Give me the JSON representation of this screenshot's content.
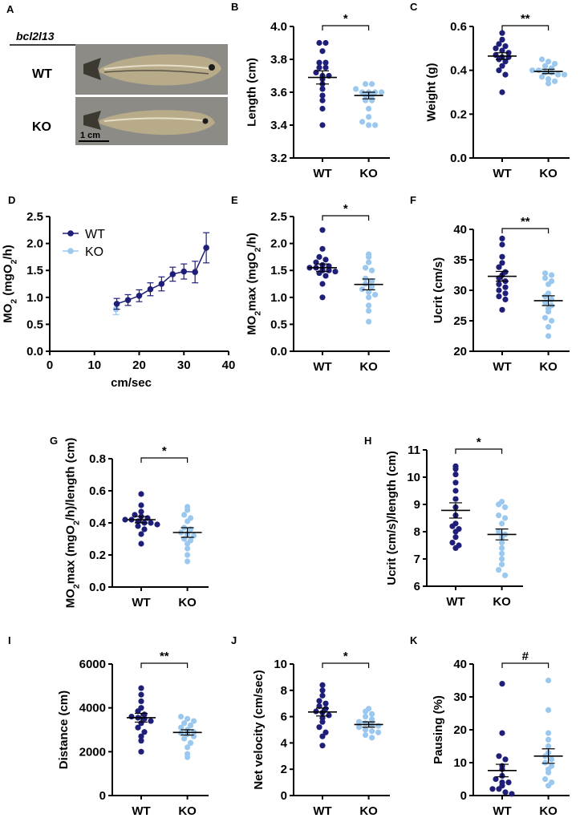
{
  "photo": {
    "panel_letter": "A",
    "gene": "bcl2l13",
    "row_labels": [
      "WT",
      "KO"
    ],
    "scale_bar": "1 cm"
  },
  "colors": {
    "wt": "#1f1f7a",
    "ko": "#9cc8ee",
    "line": "#000000",
    "text": "#000000"
  },
  "chart_data": [
    {
      "id": "B",
      "type": "scatter",
      "ylabel": "Length (cm)",
      "ylim": [
        3.2,
        4.0
      ],
      "yticks": [
        "3.2",
        "3.4",
        "3.6",
        "3.8",
        "4.0"
      ],
      "categories": [
        "WT",
        "KO"
      ],
      "significance": "*",
      "series": [
        {
          "name": "WT",
          "mean": 3.69,
          "sem": 0.04,
          "values": [
            3.9,
            3.9,
            3.85,
            3.78,
            3.78,
            3.75,
            3.75,
            3.72,
            3.7,
            3.7,
            3.68,
            3.65,
            3.62,
            3.58,
            3.55,
            3.5,
            3.4
          ]
        },
        {
          "name": "KO",
          "mean": 3.58,
          "sem": 0.02,
          "values": [
            3.65,
            3.65,
            3.62,
            3.6,
            3.6,
            3.6,
            3.6,
            3.58,
            3.58,
            3.55,
            3.55,
            3.5,
            3.45,
            3.42,
            3.4,
            3.4
          ]
        }
      ]
    },
    {
      "id": "C",
      "type": "scatter",
      "ylabel": "Weight  (g)",
      "ylim": [
        0.0,
        0.6
      ],
      "yticks": [
        "0.0",
        "0.2",
        "0.4",
        "0.6"
      ],
      "categories": [
        "WT",
        "KO"
      ],
      "significance": "**",
      "series": [
        {
          "name": "WT",
          "mean": 0.465,
          "sem": 0.015,
          "values": [
            0.57,
            0.54,
            0.52,
            0.51,
            0.5,
            0.49,
            0.48,
            0.47,
            0.46,
            0.46,
            0.45,
            0.44,
            0.42,
            0.4,
            0.38,
            0.3
          ]
        },
        {
          "name": "KO",
          "mean": 0.395,
          "sem": 0.01,
          "values": [
            0.45,
            0.44,
            0.43,
            0.42,
            0.41,
            0.4,
            0.4,
            0.39,
            0.39,
            0.38,
            0.38,
            0.37,
            0.36,
            0.35,
            0.34
          ]
        }
      ]
    },
    {
      "id": "D",
      "type": "line",
      "ylabel": "MO2 (mgO2/h)",
      "xlabel": "cm/sec",
      "xlim": [
        0,
        40
      ],
      "ylim": [
        0.0,
        2.5
      ],
      "xticks": [
        "0",
        "10",
        "20",
        "30",
        "40"
      ],
      "yticks": [
        "0.0",
        "0.5",
        "1.0",
        "1.5",
        "2.0",
        "2.5"
      ],
      "legend": "top-left",
      "series": [
        {
          "name": "WT",
          "x": [
            15,
            17.5,
            20,
            22.5,
            25,
            27.5,
            30,
            32.5,
            35
          ],
          "y": [
            0.88,
            0.95,
            1.03,
            1.15,
            1.25,
            1.43,
            1.48,
            1.47,
            1.92
          ],
          "err": [
            0.1,
            0.1,
            0.11,
            0.12,
            0.13,
            0.13,
            0.14,
            0.2,
            0.28
          ]
        },
        {
          "name": "KO",
          "x": [
            15
          ],
          "y": [
            0.78
          ],
          "err": [
            0.1
          ]
        }
      ]
    },
    {
      "id": "E",
      "type": "scatter",
      "ylabel": "MO2max (mgO2/h)",
      "ylim": [
        0.0,
        2.5
      ],
      "yticks": [
        "0.0",
        "0.5",
        "1.0",
        "1.5",
        "2.0",
        "2.5"
      ],
      "categories": [
        "WT",
        "KO"
      ],
      "significance": "*",
      "series": [
        {
          "name": "WT",
          "mean": 1.55,
          "sem": 0.07,
          "values": [
            2.25,
            1.9,
            1.75,
            1.7,
            1.65,
            1.6,
            1.58,
            1.55,
            1.55,
            1.5,
            1.5,
            1.48,
            1.45,
            1.4,
            1.25,
            1.0
          ]
        },
        {
          "name": "KO",
          "mean": 1.24,
          "sem": 0.1,
          "values": [
            1.8,
            1.75,
            1.65,
            1.55,
            1.5,
            1.35,
            1.3,
            1.25,
            1.2,
            1.15,
            1.1,
            1.05,
            1.0,
            0.85,
            0.75,
            0.55
          ]
        }
      ]
    },
    {
      "id": "F",
      "type": "scatter",
      "ylabel": "Ucrit (cm/s)",
      "ylim": [
        20,
        40
      ],
      "yticks": [
        "20",
        "25",
        "30",
        "35",
        "40"
      ],
      "categories": [
        "WT",
        "KO"
      ],
      "significance": "**",
      "series": [
        {
          "name": "WT",
          "mean": 32.3,
          "sem": 0.8,
          "values": [
            38.5,
            37.5,
            35.5,
            34.5,
            33.8,
            33,
            32.5,
            32,
            31.5,
            31,
            30.5,
            30,
            29.5,
            29,
            28.5,
            26.8
          ]
        },
        {
          "name": "KO",
          "mean": 28.3,
          "sem": 0.8,
          "values": [
            32.8,
            32.5,
            32,
            31.5,
            31,
            29.5,
            29,
            28.5,
            28,
            27.5,
            27,
            26.5,
            25.5,
            25,
            24,
            22.5
          ]
        }
      ]
    },
    {
      "id": "G",
      "type": "scatter",
      "ylabel": "MO2max (mgO2/h)/length (cm)",
      "ylim": [
        0.0,
        0.8
      ],
      "yticks": [
        "0.0",
        "0.2",
        "0.4",
        "0.6",
        "0.8"
      ],
      "categories": [
        "WT",
        "KO"
      ],
      "significance": "*",
      "series": [
        {
          "name": "WT",
          "mean": 0.42,
          "sem": 0.02,
          "values": [
            0.58,
            0.51,
            0.47,
            0.45,
            0.44,
            0.43,
            0.42,
            0.42,
            0.41,
            0.4,
            0.4,
            0.39,
            0.38,
            0.36,
            0.33,
            0.27
          ]
        },
        {
          "name": "KO",
          "mean": 0.34,
          "sem": 0.03,
          "values": [
            0.5,
            0.48,
            0.45,
            0.43,
            0.41,
            0.37,
            0.36,
            0.34,
            0.33,
            0.32,
            0.3,
            0.29,
            0.27,
            0.24,
            0.2,
            0.16
          ]
        }
      ]
    },
    {
      "id": "H",
      "type": "scatter",
      "ylabel": "Ucrit (cm/s)/length (cm)",
      "ylim": [
        6,
        11
      ],
      "yticks": [
        "6",
        "7",
        "8",
        "9",
        "10",
        "11"
      ],
      "categories": [
        "WT",
        "KO"
      ],
      "significance": "*",
      "series": [
        {
          "name": "WT",
          "mean": 8.78,
          "sem": 0.28,
          "values": [
            10.4,
            10.3,
            10.1,
            9.8,
            9.5,
            9.2,
            8.9,
            8.6,
            8.3,
            8.2,
            8.1,
            8.0,
            7.8,
            7.6,
            7.5,
            7.4
          ]
        },
        {
          "name": "KO",
          "mean": 7.9,
          "sem": 0.2,
          "values": [
            9.1,
            9.0,
            8.9,
            8.6,
            8.5,
            8.3,
            8.0,
            7.9,
            7.8,
            7.6,
            7.4,
            7.2,
            7.0,
            6.8,
            6.6,
            6.4
          ]
        }
      ]
    },
    {
      "id": "I",
      "type": "scatter",
      "ylabel": "Distance (cm)",
      "ylim": [
        0,
        6000
      ],
      "yticks": [
        "0",
        "2000",
        "4000",
        "6000"
      ],
      "categories": [
        "WT",
        "KO"
      ],
      "significance": "**",
      "series": [
        {
          "name": "WT",
          "mean": 3550,
          "sem": 200,
          "values": [
            4900,
            4600,
            4300,
            4000,
            3850,
            3700,
            3600,
            3550,
            3500,
            3400,
            3300,
            3100,
            2900,
            2700,
            2500,
            2000
          ]
        },
        {
          "name": "KO",
          "mean": 2880,
          "sem": 120,
          "values": [
            3600,
            3500,
            3400,
            3300,
            3200,
            3100,
            3000,
            2900,
            2850,
            2800,
            2700,
            2600,
            2400,
            2200,
            1900,
            1750
          ]
        }
      ]
    },
    {
      "id": "J",
      "type": "scatter",
      "ylabel": "Net velocity (cm/sec)",
      "ylim": [
        0,
        10
      ],
      "yticks": [
        "0",
        "2",
        "4",
        "6",
        "8",
        "10"
      ],
      "categories": [
        "WT",
        "KO"
      ],
      "significance": "*",
      "series": [
        {
          "name": "WT",
          "mean": 6.35,
          "sem": 0.3,
          "values": [
            8.4,
            8.0,
            7.6,
            7.2,
            7.0,
            6.8,
            6.6,
            6.4,
            6.3,
            6.1,
            5.9,
            5.6,
            5.2,
            4.8,
            4.5,
            3.8
          ]
        },
        {
          "name": "KO",
          "mean": 5.4,
          "sem": 0.2,
          "values": [
            6.6,
            6.4,
            6.2,
            6.0,
            5.8,
            5.6,
            5.5,
            5.4,
            5.3,
            5.2,
            5.0,
            4.9,
            4.8,
            4.6,
            4.4
          ]
        }
      ]
    },
    {
      "id": "K",
      "type": "scatter",
      "ylabel": "Pausing (%)",
      "ylim": [
        0,
        40
      ],
      "yticks": [
        "0",
        "10",
        "20",
        "30",
        "40"
      ],
      "categories": [
        "WT",
        "KO"
      ],
      "significance": "#",
      "series": [
        {
          "name": "WT",
          "mean": 7.6,
          "sem": 1.9,
          "values": [
            34,
            19,
            12,
            11,
            9,
            8,
            6,
            5,
            4,
            4,
            3,
            2,
            2,
            1,
            0.5
          ]
        },
        {
          "name": "KO",
          "mean": 12.0,
          "sem": 2.2,
          "values": [
            35,
            26,
            19,
            17,
            15,
            13,
            12,
            11,
            10,
            9,
            8,
            7,
            5,
            4,
            3
          ]
        }
      ]
    }
  ]
}
